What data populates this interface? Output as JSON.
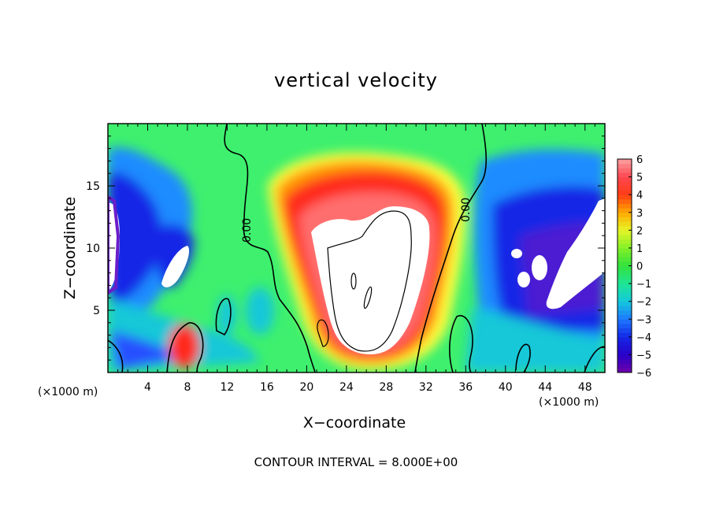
{
  "chart_data": {
    "type": "heatmap",
    "title": "vertical velocity",
    "xlabel": "X−coordinate",
    "ylabel": "Z−coordinate",
    "x_unit_note": "(×1000 m)",
    "x_unit_note_right": "(×1000 m)",
    "footer": "CONTOUR INTERVAL = 8.000E+00",
    "xlim": [
      0,
      50
    ],
    "ylim": [
      0,
      20
    ],
    "x_ticks": [
      "4",
      "8",
      "12",
      "16",
      "20",
      "24",
      "28",
      "32",
      "36",
      "40",
      "44",
      "48"
    ],
    "x_tick_values": [
      4,
      8,
      12,
      16,
      20,
      24,
      28,
      32,
      36,
      40,
      44,
      48
    ],
    "y_ticks": [
      "5",
      "10",
      "15"
    ],
    "y_tick_values": [
      5,
      10,
      15
    ],
    "colorbar": {
      "range": [
        -6,
        6
      ],
      "ticks": [
        "6",
        "5",
        "4",
        "3",
        "2",
        "1",
        "0",
        "−1",
        "−2",
        "−3",
        "−4",
        "−5",
        "−6"
      ],
      "tick_values": [
        6,
        5,
        4,
        3,
        2,
        1,
        0,
        -1,
        -2,
        -3,
        -4,
        -5,
        -6
      ],
      "out_of_range_color": "#ffffff"
    },
    "contour_labels": [
      {
        "text": "0.00",
        "x": 13.7,
        "z": 11.6
      },
      {
        "text": "0.00",
        "x": 36.4,
        "z": 12.6
      }
    ],
    "features": [
      {
        "kind": "updraft",
        "x": 26,
        "z": 9,
        "note": "strong updraft exceeding colour range (white)"
      },
      {
        "kind": "downdraft",
        "x": 5,
        "z": 10,
        "note": "downdraft left side"
      },
      {
        "kind": "downdraft",
        "x": 45,
        "z": 10,
        "note": "downdraft right side"
      }
    ]
  }
}
